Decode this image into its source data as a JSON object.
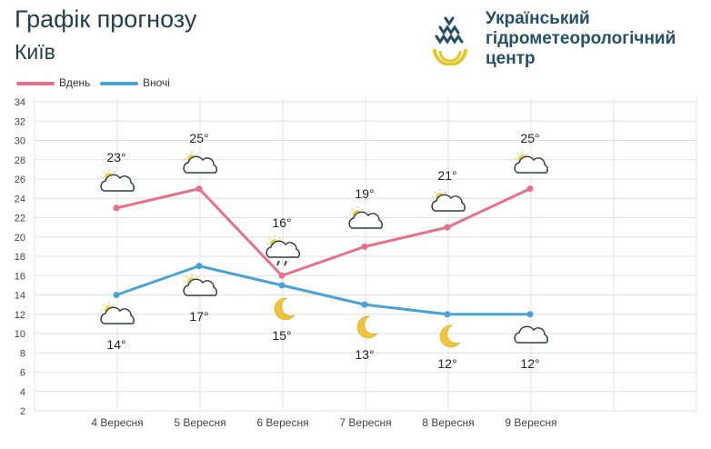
{
  "header": {
    "title": "Графік прогнозу",
    "city": "Київ",
    "logo_lines": [
      "Український",
      "гідрометеорологічний",
      "центр"
    ]
  },
  "colors": {
    "day": "#e8718a",
    "night": "#4aa3d6",
    "grid": "#e0e0e0"
  },
  "chart_data": {
    "type": "line",
    "categories": [
      "4 Вересня",
      "5 Вересня",
      "6 Вересня",
      "7 Вересня",
      "8 Вересня",
      "9 Вересня"
    ],
    "series": [
      {
        "name": "Вдень",
        "values": [
          23,
          25,
          16,
          19,
          21,
          25
        ],
        "labels": [
          "23°",
          "25°",
          "16°",
          "19°",
          "21°",
          "25°"
        ],
        "icons": [
          "partly-cloudy-icon",
          "partly-cloudy-icon",
          "cloud-rain-icon",
          "partly-cloudy-icon",
          "partly-cloudy-icon",
          "partly-cloudy-icon"
        ]
      },
      {
        "name": "Вночі",
        "values": [
          14,
          17,
          15,
          13,
          12,
          12
        ],
        "labels": [
          "14°",
          "17°",
          "15°",
          "13°",
          "12°",
          "12°"
        ],
        "icons": [
          "partly-cloudy-icon",
          "partly-cloudy-icon",
          "moon-icon",
          "moon-icon",
          "moon-icon",
          "cloudy-night-icon"
        ]
      }
    ],
    "ylim": [
      2,
      34
    ],
    "yticks": [
      "2",
      "4",
      "6",
      "8",
      "10",
      "12",
      "14",
      "16",
      "18",
      "20",
      "22",
      "24",
      "26",
      "28",
      "30",
      "32",
      "34"
    ],
    "grid": true,
    "legend": "top-left"
  }
}
